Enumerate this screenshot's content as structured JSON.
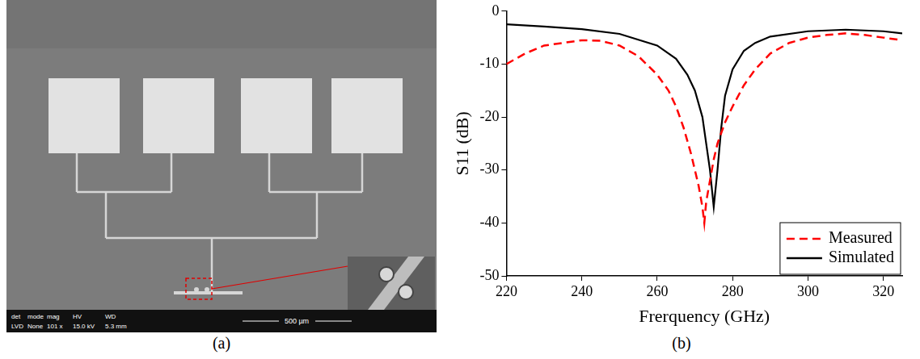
{
  "figure": {
    "panel_a": {
      "label": "(a)",
      "scale_bar": "500 µm",
      "sem_bar": {
        "header": [
          "det",
          "mode",
          "mag",
          "HV",
          "WD"
        ],
        "values": [
          "LVD",
          "None",
          "101 x",
          "15.0 kV",
          "5.3 mm"
        ]
      }
    },
    "panel_b": {
      "label": "(b)"
    }
  },
  "chart_data": {
    "type": "line",
    "x_label": "Frerquency (GHz)",
    "y_label": "S11 (dB)",
    "xlim": [
      220,
      325
    ],
    "xticks": [
      220,
      240,
      260,
      280,
      300,
      320
    ],
    "ylim": [
      -50,
      0
    ],
    "yticks": [
      -50,
      -40,
      -30,
      -20,
      -10,
      0
    ],
    "grid": false,
    "legend": "lower right",
    "series": [
      {
        "name": "Measured",
        "color": "#ff0000",
        "line_style": "dashed",
        "x": [
          220,
          225,
          230,
          240,
          245,
          250,
          255,
          260,
          263,
          265,
          267,
          269,
          270,
          271,
          272,
          272.5,
          273,
          274,
          275,
          276,
          278,
          280,
          283,
          286,
          290,
          295,
          300,
          305,
          310,
          315,
          320,
          325
        ],
        "values": [
          -10,
          -8,
          -6.5,
          -5.5,
          -5.6,
          -6.5,
          -8.5,
          -12,
          -15,
          -18,
          -22,
          -27,
          -30,
          -33,
          -37,
          -40,
          -36,
          -32,
          -28,
          -25,
          -21,
          -18,
          -14,
          -11,
          -8,
          -6,
          -5,
          -4.5,
          -4.2,
          -4.5,
          -5,
          -5.5
        ]
      },
      {
        "name": "Simulated",
        "color": "#000000",
        "line_style": "solid",
        "x": [
          220,
          230,
          240,
          250,
          260,
          265,
          268,
          270,
          272,
          273,
          274,
          275,
          276,
          277,
          278,
          280,
          283,
          286,
          290,
          300,
          310,
          320,
          325
        ],
        "values": [
          -2.5,
          -2.9,
          -3.4,
          -4.3,
          -6.5,
          -9,
          -12,
          -15,
          -20,
          -25,
          -30,
          -37,
          -30,
          -22,
          -16,
          -11,
          -7.5,
          -6,
          -4.8,
          -3.8,
          -3.5,
          -3.8,
          -4.2
        ]
      }
    ]
  }
}
